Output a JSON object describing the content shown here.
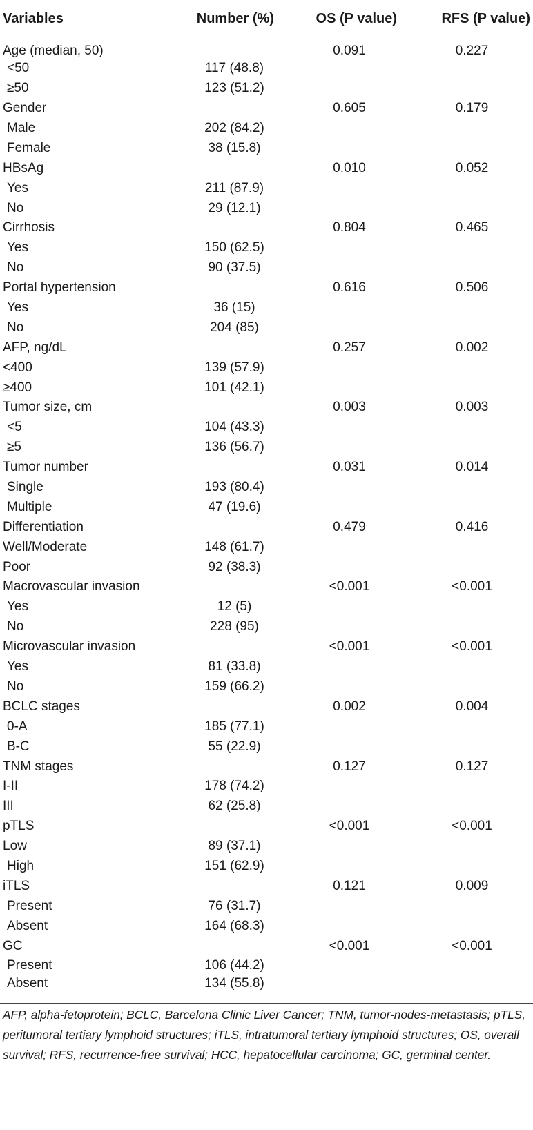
{
  "header": {
    "variables": "Variables",
    "number": "Number (%)",
    "os": "OS (P value)",
    "rfs": "RFS (P value)"
  },
  "rows": [
    {
      "label": "Age (median, 50)",
      "indent": false,
      "number": "",
      "os": "0.091",
      "rfs": "0.227"
    },
    {
      "label": "<50",
      "indent": true,
      "number": "117 (48.8)",
      "os": "",
      "rfs": ""
    },
    {
      "label": "≥50",
      "indent": true,
      "number": "123 (51.2)",
      "os": "",
      "rfs": ""
    },
    {
      "label": "Gender",
      "indent": false,
      "number": "",
      "os": "0.605",
      "rfs": "0.179"
    },
    {
      "label": "Male",
      "indent": true,
      "number": "202 (84.2)",
      "os": "",
      "rfs": ""
    },
    {
      "label": "Female",
      "indent": true,
      "number": "38 (15.8)",
      "os": "",
      "rfs": ""
    },
    {
      "label": "HBsAg",
      "indent": false,
      "number": "",
      "os": "0.010",
      "rfs": "0.052"
    },
    {
      "label": "Yes",
      "indent": true,
      "number": "211 (87.9)",
      "os": "",
      "rfs": ""
    },
    {
      "label": "No",
      "indent": true,
      "number": "29 (12.1)",
      "os": "",
      "rfs": ""
    },
    {
      "label": "Cirrhosis",
      "indent": false,
      "number": "",
      "os": "0.804",
      "rfs": "0.465"
    },
    {
      "label": "Yes",
      "indent": true,
      "number": "150 (62.5)",
      "os": "",
      "rfs": ""
    },
    {
      "label": "No",
      "indent": true,
      "number": "90 (37.5)",
      "os": "",
      "rfs": ""
    },
    {
      "label": "Portal hypertension",
      "indent": false,
      "number": "",
      "os": "0.616",
      "rfs": "0.506"
    },
    {
      "label": "Yes",
      "indent": true,
      "number": "36 (15)",
      "os": "",
      "rfs": ""
    },
    {
      "label": "No",
      "indent": true,
      "number": "204 (85)",
      "os": "",
      "rfs": ""
    },
    {
      "label": "AFP, ng/dL",
      "indent": false,
      "number": "",
      "os": "0.257",
      "rfs": "0.002"
    },
    {
      "label": "<400",
      "indent": false,
      "number": "139 (57.9)",
      "os": "",
      "rfs": ""
    },
    {
      "label": "≥400",
      "indent": false,
      "number": "101 (42.1)",
      "os": "",
      "rfs": ""
    },
    {
      "label": "Tumor size, cm",
      "indent": false,
      "number": "",
      "os": "0.003",
      "rfs": "0.003"
    },
    {
      "label": "<5",
      "indent": true,
      "number": "104 (43.3)",
      "os": "",
      "rfs": ""
    },
    {
      "label": "≥5",
      "indent": true,
      "number": "136 (56.7)",
      "os": "",
      "rfs": ""
    },
    {
      "label": "Tumor number",
      "indent": false,
      "number": "",
      "os": "0.031",
      "rfs": "0.014"
    },
    {
      "label": "Single",
      "indent": true,
      "number": "193 (80.4)",
      "os": "",
      "rfs": ""
    },
    {
      "label": "Multiple",
      "indent": true,
      "number": "47 (19.6)",
      "os": "",
      "rfs": ""
    },
    {
      "label": "Differentiation",
      "indent": false,
      "number": "",
      "os": "0.479",
      "rfs": "0.416"
    },
    {
      "label": "Well/Moderate",
      "indent": false,
      "number": "148 (61.7)",
      "os": "",
      "rfs": ""
    },
    {
      "label": "Poor",
      "indent": false,
      "number": "92 (38.3)",
      "os": "",
      "rfs": ""
    },
    {
      "label": "Macrovascular invasion",
      "indent": false,
      "number": "",
      "os": "<0.001",
      "rfs": "<0.001"
    },
    {
      "label": "Yes",
      "indent": true,
      "number": "12 (5)",
      "os": "",
      "rfs": ""
    },
    {
      "label": "No",
      "indent": true,
      "number": "228 (95)",
      "os": "",
      "rfs": ""
    },
    {
      "label": "Microvascular invasion",
      "indent": false,
      "number": "",
      "os": "<0.001",
      "rfs": "<0.001"
    },
    {
      "label": "Yes",
      "indent": true,
      "number": "81 (33.8)",
      "os": "",
      "rfs": ""
    },
    {
      "label": "No",
      "indent": true,
      "number": "159 (66.2)",
      "os": "",
      "rfs": ""
    },
    {
      "label": "BCLC stages",
      "indent": false,
      "number": "",
      "os": "0.002",
      "rfs": "0.004"
    },
    {
      "label": "0-A",
      "indent": true,
      "number": "185 (77.1)",
      "os": "",
      "rfs": ""
    },
    {
      "label": "B-C",
      "indent": true,
      "number": "55 (22.9)",
      "os": "",
      "rfs": ""
    },
    {
      "label": "TNM stages",
      "indent": false,
      "number": "",
      "os": "0.127",
      "rfs": "0.127"
    },
    {
      "label": "I-II",
      "indent": false,
      "number": "178 (74.2)",
      "os": "",
      "rfs": ""
    },
    {
      "label": "III",
      "indent": false,
      "number": "62 (25.8)",
      "os": "",
      "rfs": ""
    },
    {
      "label": "pTLS",
      "indent": false,
      "number": "",
      "os": "<0.001",
      "rfs": "<0.001"
    },
    {
      "label": "Low",
      "indent": false,
      "number": "89 (37.1)",
      "os": "",
      "rfs": ""
    },
    {
      "label": "High",
      "indent": true,
      "number": "151 (62.9)",
      "os": "",
      "rfs": ""
    },
    {
      "label": "iTLS",
      "indent": false,
      "number": "",
      "os": "0.121",
      "rfs": "0.009"
    },
    {
      "label": "Present",
      "indent": true,
      "number": "76 (31.7)",
      "os": "",
      "rfs": ""
    },
    {
      "label": "Absent",
      "indent": true,
      "number": "164 (68.3)",
      "os": "",
      "rfs": ""
    },
    {
      "label": "GC",
      "indent": false,
      "number": "",
      "os": "<0.001",
      "rfs": "<0.001"
    },
    {
      "label": "Present",
      "indent": true,
      "number": "106 (44.2)",
      "os": "",
      "rfs": ""
    },
    {
      "label": "Absent",
      "indent": true,
      "number": "134 (55.8)",
      "os": "",
      "rfs": ""
    }
  ],
  "footnote": "AFP, alpha-fetoprotein; BCLC, Barcelona Clinic Liver Cancer; TNM, tumor-nodes-metastasis; pTLS, peritumoral tertiary lymphoid structures; iTLS, intratumoral tertiary lymphoid structures; OS, overall survival; RFS, recurrence-free survival; HCC, hepatocellular carcinoma; GC, germinal center."
}
